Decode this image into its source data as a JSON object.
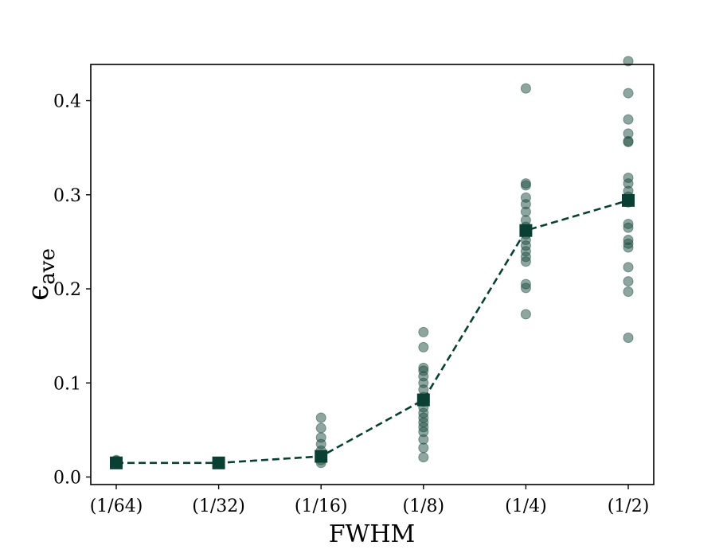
{
  "chart_data": {
    "type": "scatter",
    "title": "",
    "xlabel": "FWHM",
    "ylabel": "ϵave",
    "ylabel_parts": {
      "symbol": "ϵ",
      "subscript": "ave"
    },
    "categories": [
      "(1/64)",
      "(1/32)",
      "(1/16)",
      "(1/8)",
      "(1/4)",
      "(1/2)"
    ],
    "ylim": [
      -0.008,
      0.4385
    ],
    "yticks": [
      0.0,
      0.1,
      0.2,
      0.3,
      0.4
    ],
    "ytick_labels": [
      "0.0",
      "0.1",
      "0.2",
      "0.3",
      "0.4"
    ],
    "grid": false,
    "legend": "none",
    "series": [
      {
        "kind": "scatter",
        "marker": "circle",
        "color": "#1d4d3f",
        "opacity": 0.5,
        "points": [
          [
            0,
            0.014
          ],
          [
            0,
            0.015
          ],
          [
            0,
            0.016
          ],
          [
            0,
            0.017
          ],
          [
            0,
            0.018
          ],
          [
            1,
            0.014
          ],
          [
            1,
            0.015
          ],
          [
            1,
            0.016
          ],
          [
            2,
            0.015
          ],
          [
            2,
            0.018
          ],
          [
            2,
            0.022
          ],
          [
            2,
            0.028
          ],
          [
            2,
            0.035
          ],
          [
            2,
            0.042
          ],
          [
            2,
            0.052
          ],
          [
            2,
            0.063
          ],
          [
            3,
            0.021
          ],
          [
            3,
            0.031
          ],
          [
            3,
            0.04
          ],
          [
            3,
            0.048
          ],
          [
            3,
            0.053
          ],
          [
            3,
            0.058
          ],
          [
            3,
            0.063
          ],
          [
            3,
            0.068
          ],
          [
            3,
            0.074
          ],
          [
            3,
            0.08
          ],
          [
            3,
            0.085
          ],
          [
            3,
            0.093
          ],
          [
            3,
            0.1
          ],
          [
            3,
            0.107
          ],
          [
            3,
            0.113
          ],
          [
            3,
            0.116
          ],
          [
            3,
            0.138
          ],
          [
            3,
            0.154
          ],
          [
            4,
            0.173
          ],
          [
            4,
            0.201
          ],
          [
            4,
            0.205
          ],
          [
            4,
            0.229
          ],
          [
            4,
            0.234
          ],
          [
            4,
            0.24
          ],
          [
            4,
            0.246
          ],
          [
            4,
            0.252
          ],
          [
            4,
            0.258
          ],
          [
            4,
            0.266
          ],
          [
            4,
            0.273
          ],
          [
            4,
            0.282
          ],
          [
            4,
            0.29
          ],
          [
            4,
            0.297
          ],
          [
            4,
            0.31
          ],
          [
            4,
            0.312
          ],
          [
            4,
            0.413
          ],
          [
            5,
            0.148
          ],
          [
            5,
            0.197
          ],
          [
            5,
            0.208
          ],
          [
            5,
            0.223
          ],
          [
            5,
            0.244
          ],
          [
            5,
            0.248
          ],
          [
            5,
            0.252
          ],
          [
            5,
            0.265
          ],
          [
            5,
            0.269
          ],
          [
            5,
            0.292
          ],
          [
            5,
            0.298
          ],
          [
            5,
            0.304
          ],
          [
            5,
            0.312
          ],
          [
            5,
            0.318
          ],
          [
            5,
            0.356
          ],
          [
            5,
            0.357
          ],
          [
            5,
            0.365
          ],
          [
            5,
            0.38
          ],
          [
            5,
            0.408
          ],
          [
            5,
            0.442
          ]
        ]
      },
      {
        "kind": "line",
        "marker": "square",
        "linestyle": "dashed",
        "color": "#0a4033",
        "values": [
          0.015,
          0.015,
          0.022,
          0.082,
          0.262,
          0.294
        ]
      }
    ]
  }
}
